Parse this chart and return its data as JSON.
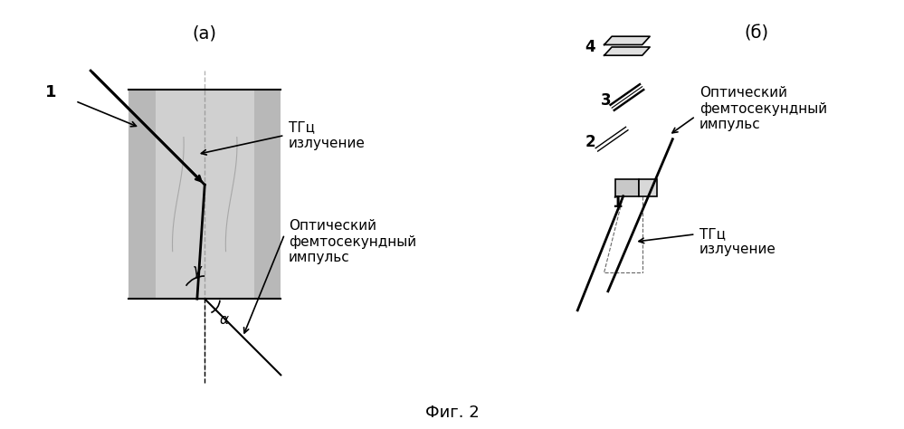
{
  "title": "Фиг. 2",
  "bg_color": "#ffffff",
  "label_a": "(а)",
  "label_b": "(б)",
  "fig2_caption": "Фиг. 2",
  "tgc_label_a": "ТГц\nизлучение",
  "optical_label_a": "Оптический\nфемтосекундный\nимпульс",
  "tgc_label_b": "ТГц\nизлучение",
  "optical_label_b": "Оптический\nфемтосекундный\nимпульс",
  "label_1_a": "1",
  "label_gamma": "γ",
  "label_alpha": "α",
  "label_1_b": "1",
  "label_2_b": "2",
  "label_3_b": "3",
  "label_4_b": "4"
}
